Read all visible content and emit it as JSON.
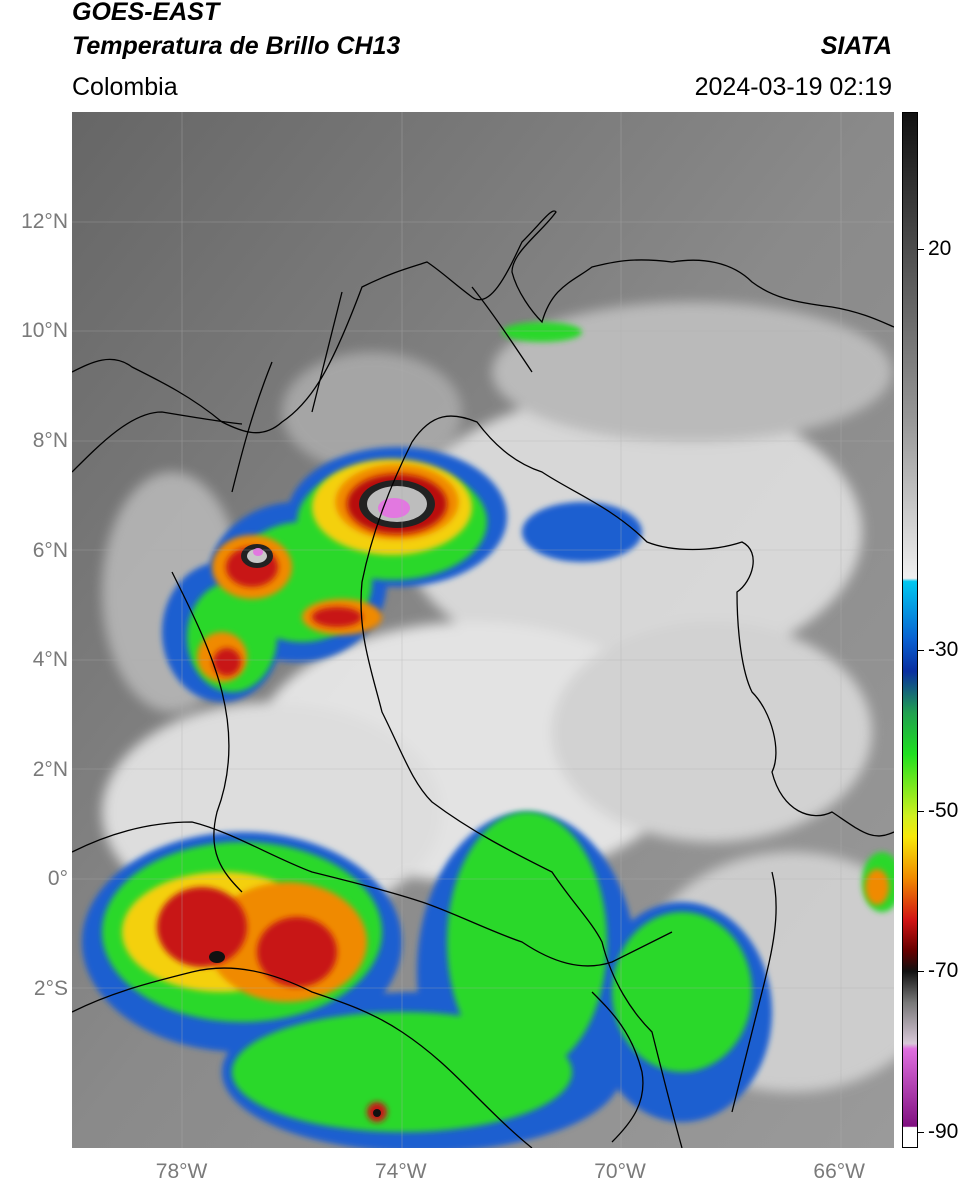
{
  "header": {
    "satellite": "GOES-EAST",
    "product": "Temperatura de Brillo CH13",
    "brand": "SIATA",
    "region": "Colombia",
    "datetime": "2024-03-19 02:19"
  },
  "map": {
    "lat_ticks": [
      {
        "value": 12,
        "label": "12°N"
      },
      {
        "value": 10,
        "label": "10°N"
      },
      {
        "value": 8,
        "label": "8°N"
      },
      {
        "value": 6,
        "label": "6°N"
      },
      {
        "value": 4,
        "label": "4°N"
      },
      {
        "value": 2,
        "label": "2°N"
      },
      {
        "value": 0,
        "label": "0°"
      },
      {
        "value": -2,
        "label": "2°S"
      }
    ],
    "lon_ticks": [
      {
        "value": -78,
        "label": "78°W"
      },
      {
        "value": -74,
        "label": "74°W"
      },
      {
        "value": -70,
        "label": "70°W"
      },
      {
        "value": -66,
        "label": "66°W"
      }
    ],
    "extent": {
      "lon_min": -80,
      "lon_max": -65,
      "lat_min": -4.9,
      "lat_max": 14
    }
  },
  "colorbar": {
    "ticks": [
      {
        "value": 20,
        "label": "20"
      },
      {
        "value": -30,
        "label": "-30"
      },
      {
        "value": -50,
        "label": "-50"
      },
      {
        "value": -70,
        "label": "-70"
      },
      {
        "value": -90,
        "label": "-90"
      }
    ],
    "range": [
      -92,
      37
    ],
    "colors": {
      "warm_gray": "#6e6e6e",
      "white": "#f4f4f4",
      "cyan": "#00c8f0",
      "blue": "#0a2fa0",
      "green": "#22e01a",
      "yellow": "#f6e80a",
      "orange": "#f08a00",
      "red": "#c81010",
      "black": "#101010",
      "magenta": "#d060d0",
      "purple": "#801080"
    }
  }
}
